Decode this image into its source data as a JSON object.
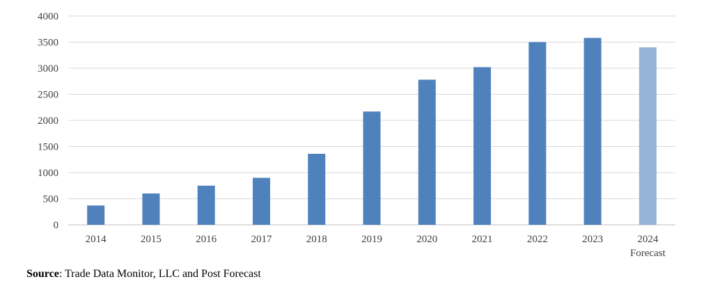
{
  "chart_data": {
    "type": "bar",
    "categories": [
      "2014",
      "2015",
      "2016",
      "2017",
      "2018",
      "2019",
      "2020",
      "2021",
      "2022",
      "2023",
      "2024"
    ],
    "category_sublabels": [
      "",
      "",
      "",
      "",
      "",
      "",
      "",
      "",
      "",
      "",
      "Forecast"
    ],
    "values": [
      370,
      600,
      750,
      900,
      1360,
      2170,
      2780,
      3020,
      3500,
      3580,
      3400
    ],
    "forecast_flags": [
      false,
      false,
      false,
      false,
      false,
      false,
      false,
      false,
      false,
      false,
      true
    ],
    "y_ticks": [
      "0",
      "500",
      "1000",
      "1500",
      "2000",
      "2500",
      "3000",
      "3500",
      "4000"
    ],
    "ylim": [
      0,
      4000
    ],
    "grid": true,
    "legend": "none",
    "colors": {
      "actual": "#4f81bd",
      "forecast": "#95b3d7",
      "grid": "#d9d9d9",
      "axis": "#bfbfbf"
    }
  },
  "footer": {
    "source_label": "Source",
    "source_text": ": Trade Data Monitor, LLC and Post Forecast"
  }
}
